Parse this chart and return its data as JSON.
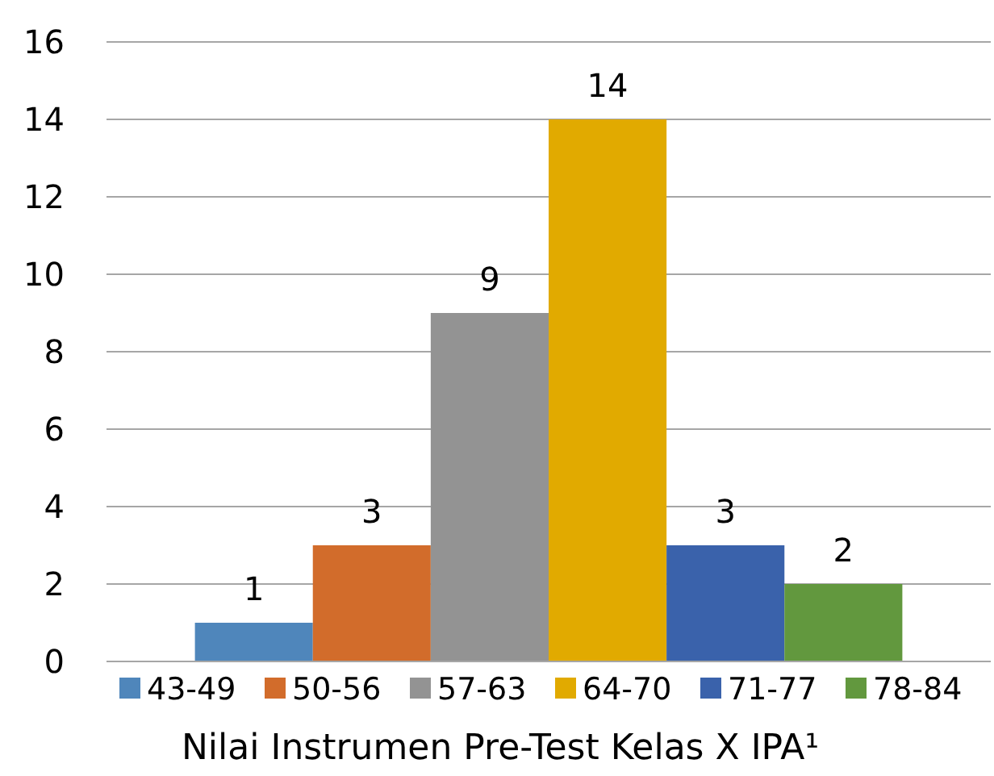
{
  "chart_data": {
    "type": "bar",
    "categories": [
      null
    ],
    "series": [
      {
        "name": "43-49",
        "color": "#4f86bb",
        "values": [
          1
        ]
      },
      {
        "name": "50-56",
        "color": "#d26c2b",
        "values": [
          3
        ]
      },
      {
        "name": "57-63",
        "color": "#939393",
        "values": [
          9
        ]
      },
      {
        "name": "64-70",
        "color": "#e1aa00",
        "values": [
          14
        ]
      },
      {
        "name": "71-77",
        "color": "#3a62ab",
        "values": [
          3
        ]
      },
      {
        "name": "78-84",
        "color": "#62983e",
        "values": [
          2
        ]
      }
    ],
    "ylim": [
      0,
      16
    ],
    "yticks": [
      0,
      2,
      4,
      6,
      8,
      10,
      12,
      14,
      16
    ],
    "grid": "y",
    "data_labels": true,
    "legend": "bottom",
    "xlabel": "Nilai Instrumen Pre-Test Kelas X IPA¹"
  }
}
